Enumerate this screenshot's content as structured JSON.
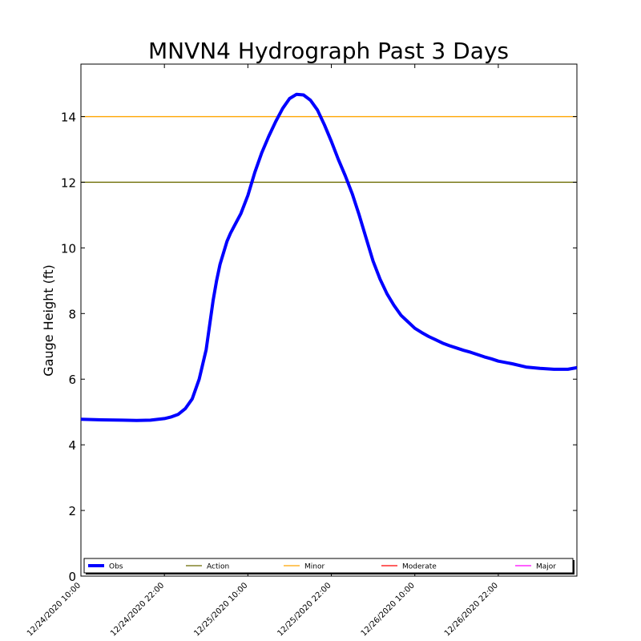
{
  "chart_data": {
    "type": "line",
    "title": "MNVN4 Hydrograph Past 3 Days",
    "xlabel": "",
    "ylabel": "Gauge Height (ft)",
    "ylim": [
      0,
      15.6
    ],
    "yticks": [
      0,
      2,
      4,
      6,
      8,
      10,
      12,
      14
    ],
    "x_range_hours": [
      0,
      71.3
    ],
    "xticks": [
      {
        "label": "12/24/2020 10:00",
        "hour": 0
      },
      {
        "label": "12/24/2020 22:00",
        "hour": 12
      },
      {
        "label": "12/25/2020 10:00",
        "hour": 24
      },
      {
        "label": "12/25/2020 22:00",
        "hour": 36
      },
      {
        "label": "12/26/2020 10:00",
        "hour": 48
      },
      {
        "label": "12/26/2020 22:00",
        "hour": 60
      }
    ],
    "series": [
      {
        "name": "Obs",
        "color": "#0000ff",
        "x": [
          0,
          3,
          6,
          8,
          10,
          12,
          13,
          14,
          15,
          16,
          17,
          18,
          19,
          19.5,
          20,
          21,
          21.5,
          22,
          23,
          24,
          25,
          26,
          27,
          28,
          29,
          30,
          31,
          32,
          33,
          34,
          35,
          36,
          37,
          38,
          39,
          40,
          41,
          42,
          43,
          44,
          45,
          46,
          47,
          48,
          49,
          50,
          51,
          52,
          53,
          54,
          55,
          56,
          57,
          58,
          59,
          60,
          62,
          64,
          66,
          68,
          70,
          71.3
        ],
        "values": [
          4.78,
          4.76,
          4.75,
          4.74,
          4.75,
          4.8,
          4.85,
          4.93,
          5.1,
          5.4,
          6.0,
          6.9,
          8.4,
          9.0,
          9.5,
          10.2,
          10.45,
          10.65,
          11.05,
          11.6,
          12.3,
          12.9,
          13.4,
          13.85,
          14.25,
          14.55,
          14.68,
          14.66,
          14.5,
          14.2,
          13.75,
          13.25,
          12.7,
          12.2,
          11.65,
          11.0,
          10.3,
          9.6,
          9.05,
          8.6,
          8.25,
          7.95,
          7.75,
          7.55,
          7.42,
          7.3,
          7.2,
          7.1,
          7.02,
          6.95,
          6.88,
          6.82,
          6.75,
          6.68,
          6.62,
          6.55,
          6.47,
          6.37,
          6.33,
          6.3,
          6.3,
          6.35
        ]
      }
    ],
    "thresholds": [
      {
        "name": "Action",
        "value": 12,
        "color": "#6b6b00"
      },
      {
        "name": "Minor",
        "value": 14,
        "color": "#ffa500"
      },
      {
        "name": "Moderate",
        "value": null,
        "color": "#ff0000"
      },
      {
        "name": "Major",
        "value": null,
        "color": "#ff00ff"
      }
    ],
    "legend": {
      "placement": "bottom",
      "entries": [
        {
          "name": "Obs",
          "color": "#0000ff",
          "weight": "thick"
        },
        {
          "name": "Action",
          "color": "#6b6b00",
          "weight": "thin"
        },
        {
          "name": "Minor",
          "color": "#ffa500",
          "weight": "thin"
        },
        {
          "name": "Moderate",
          "color": "#ff0000",
          "weight": "thin"
        },
        {
          "name": "Major",
          "color": "#ff00ff",
          "weight": "thin"
        }
      ]
    }
  }
}
